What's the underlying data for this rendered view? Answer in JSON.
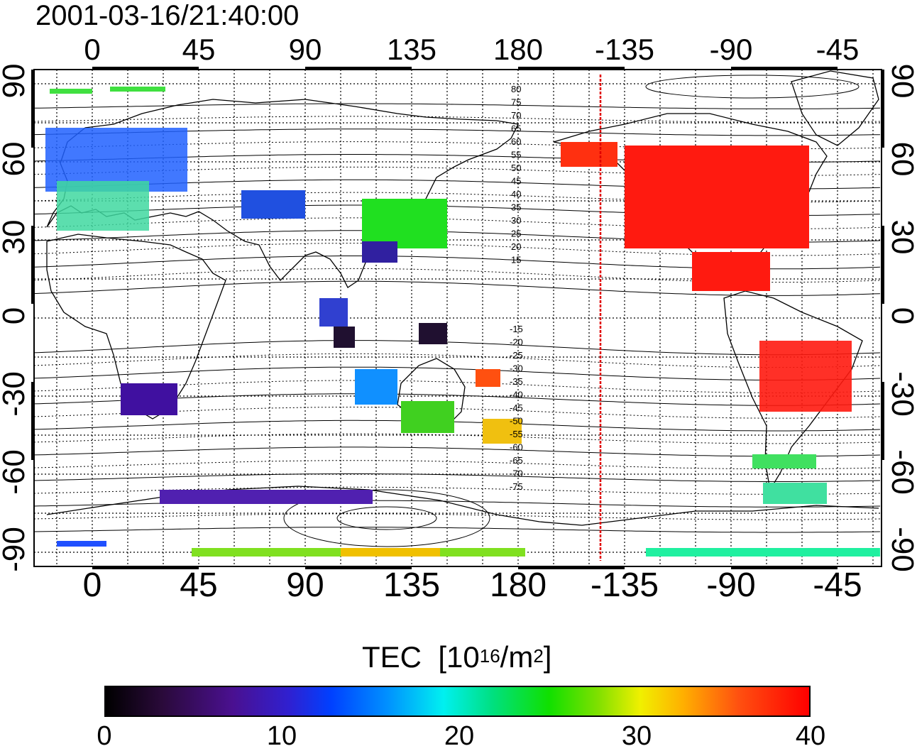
{
  "timestamp": "2001-03-16/21:40:00",
  "lon_ticks": [
    "0",
    "45",
    "90",
    "135",
    "180",
    "-135",
    "-90",
    "-45"
  ],
  "lat_ticks": [
    "90",
    "60",
    "30",
    "0",
    "-30",
    "-60",
    "-90"
  ],
  "contour_labels_north": [
    "80",
    "75",
    "70",
    "65",
    "60",
    "55",
    "50",
    "45",
    "40",
    "35",
    "30",
    "25",
    "20",
    "15"
  ],
  "contour_labels_south": [
    "-15",
    "-20",
    "-25",
    "-30",
    "-35",
    "-40",
    "-45",
    "-50",
    "-55",
    "-60",
    "-65",
    "-70",
    "-75"
  ],
  "colorbar": {
    "title": "TEC",
    "unit_open": "[10",
    "unit_exp": "16",
    "unit_mid": "/m",
    "unit_exp2": "2",
    "unit_close": "]",
    "ticks": [
      "0",
      "10",
      "20",
      "30",
      "40"
    ],
    "min": 0,
    "max": 40
  },
  "colors": {
    "terminator_line": "#e00000",
    "frame": "#000000",
    "contour": "#000000"
  },
  "terminator_longitude": -145
}
